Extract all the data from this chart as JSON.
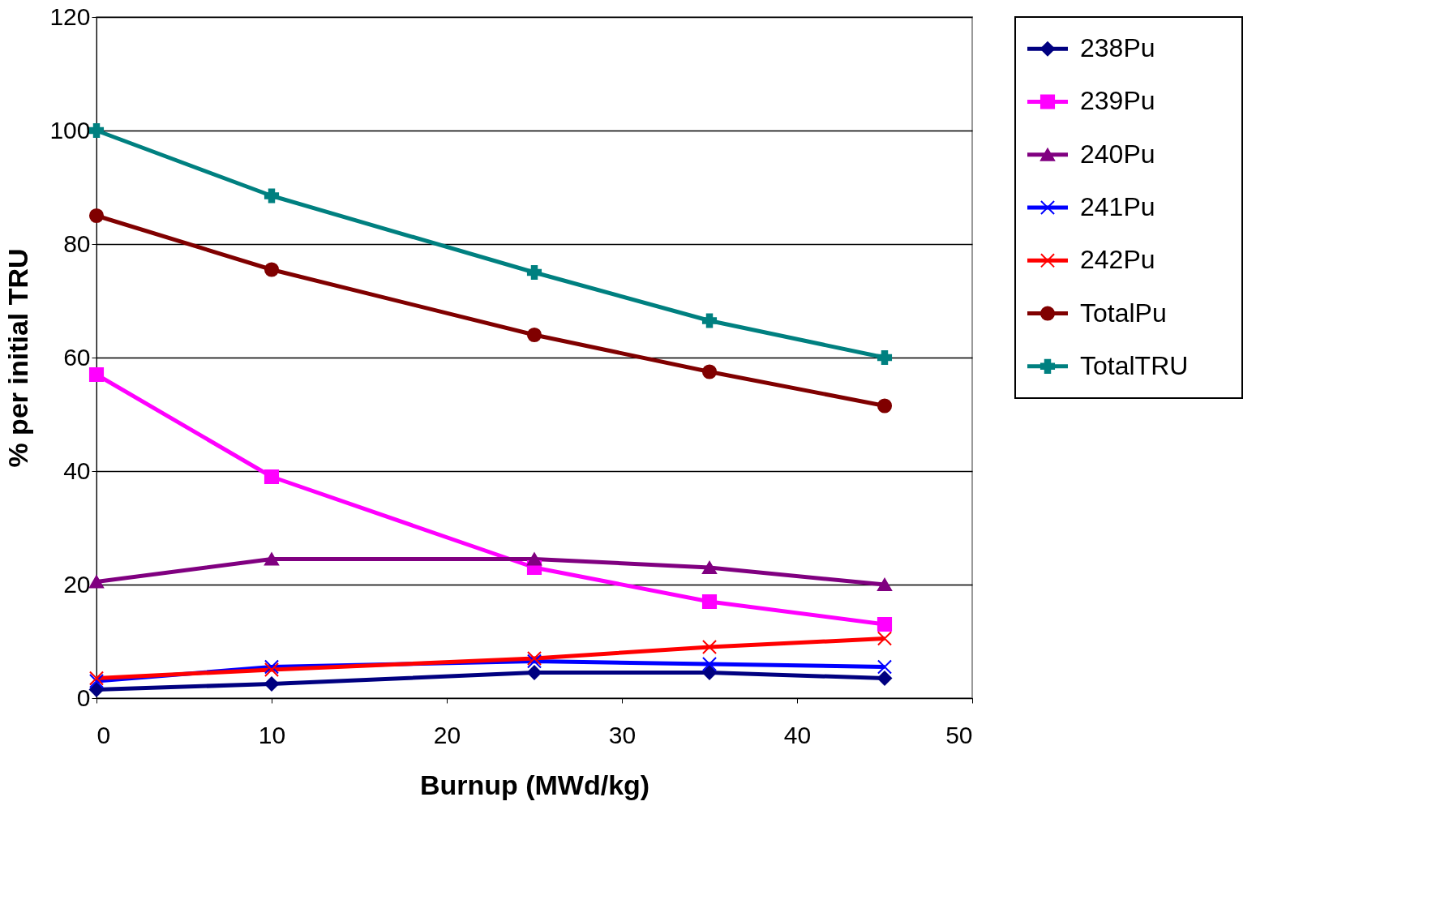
{
  "chart_data": {
    "type": "line",
    "xlabel": "Burnup (MWd/kg)",
    "ylabel": "% per initial TRU",
    "x": [
      0,
      10,
      25,
      35,
      45
    ],
    "series": [
      {
        "name": "238Pu",
        "color": "#000080",
        "marker": "diamond",
        "values": [
          1.5,
          2.5,
          4.5,
          4.5,
          3.5
        ]
      },
      {
        "name": "239Pu",
        "color": "#ff00ff",
        "marker": "square",
        "values": [
          57,
          39,
          23,
          17,
          13
        ]
      },
      {
        "name": "240Pu",
        "color": "#800080",
        "marker": "triangle",
        "values": [
          20.5,
          24.5,
          24.5,
          23,
          20
        ]
      },
      {
        "name": "241Pu",
        "color": "#0000ff",
        "marker": "cross",
        "values": [
          3,
          5.5,
          6.5,
          6,
          5.5
        ]
      },
      {
        "name": "242Pu",
        "color": "#ff0000",
        "marker": "cross",
        "values": [
          3.5,
          5,
          7,
          9,
          10.5
        ]
      },
      {
        "name": "TotalPu",
        "color": "#800000",
        "marker": "circle",
        "values": [
          85,
          75.5,
          64,
          57.5,
          51.5
        ]
      },
      {
        "name": "TotalTRU",
        "color": "#008080",
        "marker": "plus",
        "values": [
          100,
          88.5,
          75,
          66.5,
          60
        ]
      }
    ],
    "xlim": [
      0,
      50
    ],
    "xticks": [
      0,
      10,
      20,
      30,
      40,
      50
    ],
    "ylim": [
      0,
      120
    ],
    "yticks": [
      0,
      20,
      40,
      60,
      80,
      100,
      120
    ],
    "grid": "y",
    "legend": "right",
    "line_style": "solid"
  }
}
